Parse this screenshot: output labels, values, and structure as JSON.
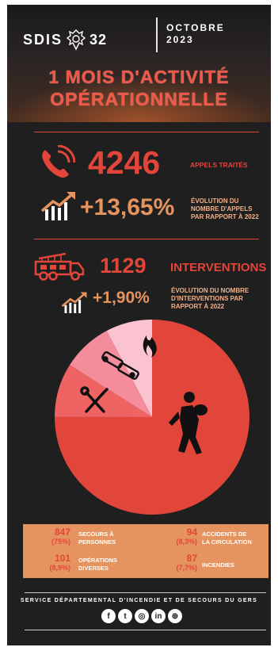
{
  "header": {
    "logo_text": "SDIS",
    "logo_number": "32",
    "month": "OCTOBRE",
    "year": "2023",
    "title_line1": "1 MOIS D'ACTIVITÉ",
    "title_line2": "OPÉRATIONNELLE"
  },
  "calls": {
    "count": "4246",
    "label": "APPELS TRAITÉS",
    "evolution": "+13,65%",
    "evolution_label": "ÉVOLUTION DU NOMBRE D'APPELS PAR RAPPORT À 2022"
  },
  "interventions": {
    "count": "1129",
    "label": "INTERVENTIONS",
    "evolution": "+1,90%",
    "evolution_label": "ÉVOLUTION DU NOMBRE D'INTERVENTIONS PAR RAPPORT À 2022"
  },
  "chart_data": {
    "type": "pie",
    "slices": [
      {
        "label": "SECOURS À PERSONNES",
        "value": 847,
        "percent": 75,
        "color": "#e2453a",
        "icon": "rescue-person-icon"
      },
      {
        "label": "OPÉRATIONS DIVERSES",
        "value": 101,
        "percent": 8.9,
        "color": "#ef6363",
        "icon": "tools-icon"
      },
      {
        "label": "ACCIDENTS DE LA CIRCULATION",
        "value": 94,
        "percent": 8.3,
        "color": "#f58c9b",
        "icon": "car-crash-icon"
      },
      {
        "label": "INCENDIES",
        "value": 87,
        "percent": 7.7,
        "color": "#fbc3d0",
        "icon": "fire-icon"
      }
    ]
  },
  "legend": [
    {
      "value": "847",
      "pct": "(75%)",
      "label_line1": "SECOURS À",
      "label_line2": "PERSONNES"
    },
    {
      "value": "94",
      "pct": "(8,3%)",
      "label_line1": "ACCIDENTS DE",
      "label_line2": "LA CIRCULATION"
    },
    {
      "value": "101",
      "pct": "(8,9%)",
      "label_line1": "OPÉRATIONS",
      "label_line2": "DIVERSES"
    },
    {
      "value": "87",
      "pct": "(7,7%)",
      "label_line1": "INCENDIES",
      "label_line2": ""
    }
  ],
  "footer": {
    "service": "SERVICE DÉPARTEMENTAL D'INCENDIE ET DE SECOURS DU GERS",
    "social_icons": [
      "facebook-icon",
      "twitter-icon",
      "instagram-icon",
      "linkedin-icon",
      "website-globe-icon"
    ]
  },
  "colors": {
    "background": "#1f1f1f",
    "red": "#e2453a",
    "orange": "#e5945f"
  }
}
